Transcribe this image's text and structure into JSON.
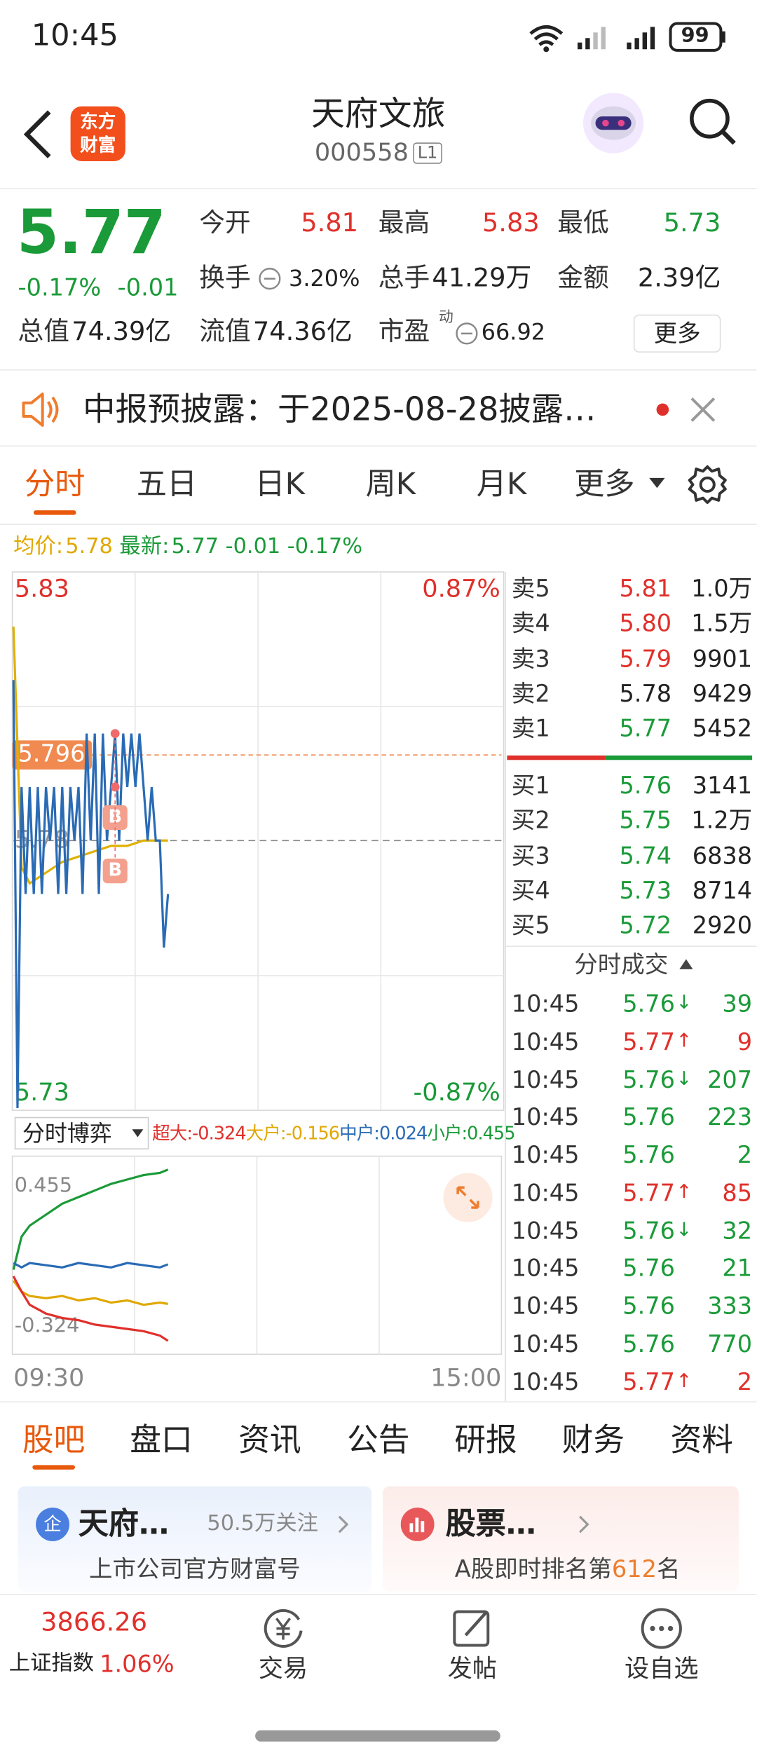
{
  "status_bar": {
    "time": "10:45",
    "battery": "99"
  },
  "header": {
    "logo": [
      "东方",
      "财富"
    ],
    "title": "天府文旅",
    "code": "000558",
    "level": "L1"
  },
  "quote": {
    "price": "5.77",
    "change_pct": "-0.17%",
    "change": "-0.01",
    "fields": [
      {
        "label": "今开",
        "value": "5.81",
        "color": "#e0302b"
      },
      {
        "label": "最高",
        "value": "5.83",
        "color": "#e0302b"
      },
      {
        "label": "最低",
        "value": "5.73",
        "color": "#1a9a38"
      },
      {
        "label": "换手",
        "value": "3.20%"
      },
      {
        "label": "总手",
        "value": "41.29万"
      },
      {
        "label": "金额",
        "value": "2.39亿"
      },
      {
        "label": "总值",
        "value": "74.39亿"
      },
      {
        "label": "流值",
        "value": "74.36亿"
      },
      {
        "label": "市盈",
        "superscript": "动",
        "value": "66.92"
      }
    ],
    "more": "更多"
  },
  "notice": {
    "text": "中报预披露：于2025-08-28披露…"
  },
  "chart_tabs": {
    "items": [
      "分时",
      "五日",
      "日K",
      "周K",
      "月K",
      "更多"
    ],
    "active": 0
  },
  "chart_legend": {
    "avg_label": "均价:",
    "avg": "5.78",
    "latest_label": "最新:",
    "latest": "5.77",
    "change": "-0.01",
    "change_pct": "-0.17%"
  },
  "chart_data": [
    {
      "type": "line",
      "xlim": [
        0,
        240
      ],
      "xticks": [
        {
          "value": 0,
          "label": "09:30"
        },
        {
          "value": 240,
          "label": "15:00"
        }
      ],
      "ylim": [
        5.73,
        5.83
      ],
      "yticks": [
        5.73,
        5.78,
        5.83
      ],
      "ytick_colors": [
        "#1a9a38",
        "#999999",
        "#e0302b"
      ],
      "y2lim": [
        -0.87,
        0.87
      ],
      "y2ticks": [
        {
          "value": -0.87,
          "label": "-0.87%"
        },
        {
          "value": 0.87,
          "label": "0.87%"
        }
      ],
      "y2tick_colors": [
        "#1a9a38",
        "#e0302b"
      ],
      "grid": true,
      "marker": {
        "value": 5.796,
        "color": "#f08a50"
      },
      "annotations": [
        {
          "x": 50,
          "value": 5.8,
          "label": "B"
        },
        {
          "x": 50,
          "value": 5.79,
          "label": "B"
        }
      ],
      "series": [
        {
          "color": "#2a6bb5",
          "x": [
            0,
            2,
            4,
            6,
            8,
            10,
            12,
            14,
            16,
            18,
            20,
            22,
            24,
            26,
            28,
            30,
            32,
            34,
            36,
            38,
            40,
            42,
            44,
            46,
            48,
            50,
            52,
            54,
            56,
            58,
            60,
            62,
            64,
            66,
            68,
            70,
            72,
            74,
            76
          ],
          "values": [
            5.81,
            5.73,
            5.79,
            5.77,
            5.79,
            5.77,
            5.79,
            5.77,
            5.79,
            5.78,
            5.79,
            5.77,
            5.79,
            5.77,
            5.79,
            5.78,
            5.79,
            5.77,
            5.8,
            5.78,
            5.8,
            5.77,
            5.8,
            5.78,
            5.79,
            5.8,
            5.78,
            5.8,
            5.79,
            5.8,
            5.79,
            5.8,
            5.79,
            5.78,
            5.79,
            5.78,
            5.78,
            5.76,
            5.77
          ]
        },
        {
          "color": "#e0b000",
          "x": [
            0,
            4,
            8,
            16,
            24,
            32,
            40,
            48,
            56,
            64,
            72,
            76
          ],
          "values": [
            5.82,
            5.775,
            5.772,
            5.774,
            5.776,
            5.777,
            5.778,
            5.779,
            5.779,
            5.78,
            5.78,
            5.78
          ]
        }
      ]
    },
    {
      "type": "line",
      "xlim": [
        0,
        240
      ],
      "ylim": [
        -0.324,
        0.455
      ],
      "yticks": [
        -0.324,
        0.455
      ],
      "series": [
        {
          "name": "超大:",
          "color": "#e0302b",
          "x": [
            0,
            4,
            8,
            16,
            24,
            32,
            40,
            48,
            56,
            64,
            72,
            76
          ],
          "values": [
            -0.03,
            -0.1,
            -0.16,
            -0.2,
            -0.22,
            -0.23,
            -0.25,
            -0.26,
            -0.27,
            -0.28,
            -0.3,
            -0.324
          ]
        },
        {
          "name": "大户:",
          "color": "#e0a800",
          "x": [
            0,
            4,
            8,
            16,
            24,
            32,
            40,
            48,
            56,
            64,
            72,
            76
          ],
          "values": [
            -0.05,
            -0.1,
            -0.12,
            -0.13,
            -0.12,
            -0.14,
            -0.13,
            -0.15,
            -0.14,
            -0.16,
            -0.15,
            -0.156
          ]
        },
        {
          "name": "中户:",
          "color": "#2a6bb5",
          "x": [
            0,
            4,
            8,
            16,
            24,
            32,
            40,
            48,
            56,
            64,
            72,
            76
          ],
          "values": [
            0.03,
            0.01,
            0.03,
            0.02,
            0.01,
            0.03,
            0.02,
            0.01,
            0.03,
            0.02,
            0.01,
            0.024
          ]
        },
        {
          "name": "小户:",
          "color": "#1a9a38",
          "x": [
            0,
            4,
            8,
            16,
            24,
            32,
            40,
            48,
            56,
            64,
            72,
            76
          ],
          "values": [
            0.0,
            0.15,
            0.2,
            0.25,
            0.3,
            0.33,
            0.36,
            0.39,
            0.41,
            0.43,
            0.44,
            0.455
          ]
        }
      ]
    }
  ],
  "flow_selector": "分时博弈",
  "order_book": {
    "asks": [
      {
        "label": "卖5",
        "price": "5.81",
        "volume": "1.0万",
        "color": "#e0302b"
      },
      {
        "label": "卖4",
        "price": "5.80",
        "volume": "1.5万",
        "color": "#e0302b"
      },
      {
        "label": "卖3",
        "price": "5.79",
        "volume": "9901",
        "color": "#e0302b"
      },
      {
        "label": "卖2",
        "price": "5.78",
        "volume": "9429",
        "color": "#222222"
      },
      {
        "label": "卖1",
        "price": "5.77",
        "volume": "5452",
        "color": "#1a9a38"
      }
    ],
    "bids": [
      {
        "label": "买1",
        "price": "5.76",
        "volume": "3141",
        "color": "#1a9a38"
      },
      {
        "label": "买2",
        "price": "5.75",
        "volume": "1.2万",
        "color": "#1a9a38"
      },
      {
        "label": "买3",
        "price": "5.74",
        "volume": "6838",
        "color": "#1a9a38"
      },
      {
        "label": "买4",
        "price": "5.73",
        "volume": "8714",
        "color": "#1a9a38"
      },
      {
        "label": "买5",
        "price": "5.72",
        "volume": "2920",
        "color": "#1a9a38"
      }
    ]
  },
  "trades": {
    "title": "分时成交",
    "rows": [
      {
        "time": "10:45",
        "price": "5.76",
        "direction": "↓",
        "volume": "39",
        "color": "#1a9a38"
      },
      {
        "time": "10:45",
        "price": "5.77",
        "direction": "↑",
        "volume": "9",
        "color": "#e0302b"
      },
      {
        "time": "10:45",
        "price": "5.76",
        "direction": "↓",
        "volume": "207",
        "color": "#1a9a38"
      },
      {
        "time": "10:45",
        "price": "5.76",
        "volume": "223",
        "color": "#1a9a38"
      },
      {
        "time": "10:45",
        "price": "5.76",
        "volume": "2",
        "color": "#1a9a38"
      },
      {
        "time": "10:45",
        "price": "5.77",
        "direction": "↑",
        "volume": "85",
        "color": "#e0302b"
      },
      {
        "time": "10:45",
        "price": "5.76",
        "direction": "↓",
        "volume": "32",
        "color": "#1a9a38"
      },
      {
        "time": "10:45",
        "price": "5.76",
        "volume": "21",
        "color": "#1a9a38"
      },
      {
        "time": "10:45",
        "price": "5.76",
        "volume": "333",
        "color": "#1a9a38"
      },
      {
        "time": "10:45",
        "price": "5.76",
        "volume": "770",
        "color": "#1a9a38"
      },
      {
        "time": "10:45",
        "price": "5.77",
        "direction": "↑",
        "volume": "2",
        "color": "#e0302b"
      }
    ]
  },
  "content_tabs": {
    "items": [
      "股吧",
      "盘口",
      "资讯",
      "公告",
      "研报",
      "财务",
      "资料"
    ],
    "active": 0
  },
  "cards": [
    {
      "icon": "企",
      "title": "天府…",
      "meta": "50.5万关注",
      "subtitle": "上市公司官方财富号"
    },
    {
      "title": "股票…",
      "subtitle_parts": [
        "A股即时排名第",
        "612",
        "名"
      ]
    }
  ],
  "bottom_nav": {
    "index_value": "3866.26",
    "index_name": "上证指数",
    "index_change": "1.06%",
    "items": [
      "交易",
      "发帖",
      "设自选"
    ]
  }
}
